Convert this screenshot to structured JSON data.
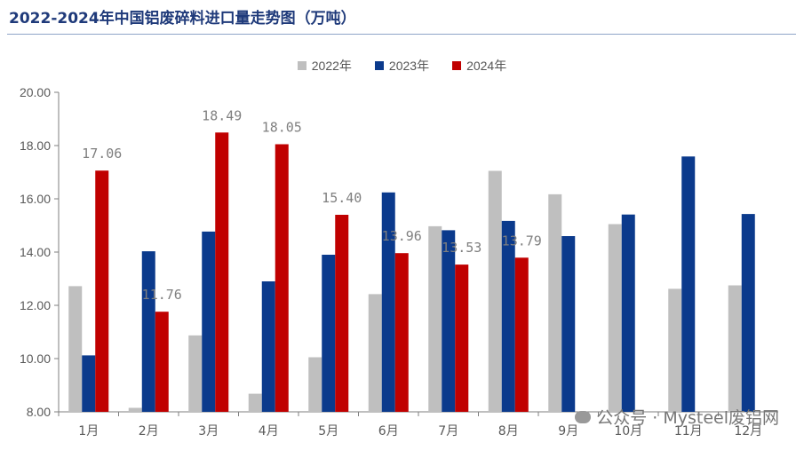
{
  "title": "2022-2024年中国铝废碎料进口量走势图（万吨）",
  "watermark_text": "公众号 · Mysteel废铝网",
  "colors": {
    "2022年": "#bfbfbf",
    "2023年": "#0b3a8c",
    "2024年": "#c00000"
  },
  "chart_data": {
    "type": "bar",
    "categories": [
      "1月",
      "2月",
      "3月",
      "4月",
      "5月",
      "6月",
      "7月",
      "8月",
      "9月",
      "10月",
      "11月",
      "12月"
    ],
    "ylim": [
      8,
      20
    ],
    "yticks": [
      "8.00",
      "10.00",
      "12.00",
      "14.00",
      "16.00",
      "18.00",
      "20.00"
    ],
    "series": [
      {
        "name": "2022年",
        "values": [
          12.72,
          8.15,
          10.87,
          8.68,
          10.05,
          12.42,
          14.97,
          17.05,
          16.17,
          15.05,
          12.62,
          12.75
        ]
      },
      {
        "name": "2023年",
        "values": [
          10.12,
          14.03,
          14.77,
          12.9,
          13.9,
          16.24,
          14.82,
          15.17,
          14.6,
          15.41,
          17.59,
          15.43
        ]
      },
      {
        "name": "2024年",
        "values": [
          17.06,
          11.76,
          18.49,
          18.05,
          15.4,
          13.96,
          13.53,
          13.79,
          null,
          null,
          null,
          null
        ],
        "labels": [
          "17.06",
          "11.76",
          "18.49",
          "18.05",
          "15.40",
          "13.96",
          "13.53",
          "13.79",
          "",
          "",
          "",
          ""
        ]
      }
    ],
    "legend_position": "top-center",
    "grid": false
  }
}
